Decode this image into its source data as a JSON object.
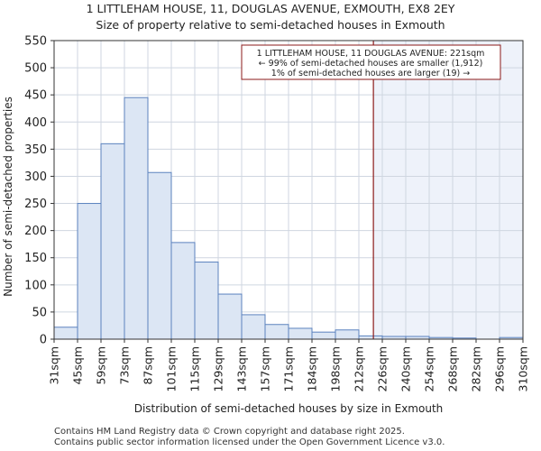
{
  "chart_data": {
    "type": "bar",
    "title": "1 LITTLEHAM HOUSE, 11, DOUGLAS AVENUE, EXMOUTH, EX8 2EY",
    "subtitle": "Size of property relative to semi-detached houses in Exmouth",
    "xlabel": "Distribution of semi-detached houses by size in Exmouth",
    "ylabel": "Number of semi-detached properties",
    "ylim": [
      0,
      550
    ],
    "yticks": [
      0,
      50,
      100,
      150,
      200,
      250,
      300,
      350,
      400,
      450,
      500,
      550
    ],
    "bin_start": 31,
    "bin_width": 13.95,
    "tick_labels": [
      "31sqm",
      "45sqm",
      "59sqm",
      "73sqm",
      "87sqm",
      "101sqm",
      "115sqm",
      "129sqm",
      "143sqm",
      "157sqm",
      "171sqm",
      "184sqm",
      "198sqm",
      "212sqm",
      "226sqm",
      "240sqm",
      "254sqm",
      "268sqm",
      "282sqm",
      "296sqm",
      "310sqm"
    ],
    "values": [
      22,
      250,
      360,
      445,
      307,
      178,
      142,
      83,
      45,
      27,
      20,
      13,
      17,
      6,
      5,
      5,
      3,
      2,
      0,
      3
    ],
    "grid": true,
    "marker": {
      "value_sqm": 221,
      "lines": [
        "1 LITTLEHAM HOUSE, 11 DOUGLAS AVENUE: 221sqm",
        "← 99% of semi-detached houses are smaller (1,912)",
        "1% of semi-detached houses are larger (19) →"
      ]
    },
    "colors": {
      "bar_fill": "#dce6f4",
      "bar_stroke": "#5b82be",
      "marker_line": "#8b1a1a",
      "shade": "#eef2fa",
      "grid": "#cfd6e0"
    }
  },
  "footer": {
    "line1": "Contains HM Land Registry data © Crown copyright and database right 2025.",
    "line2": "Contains public sector information licensed under the Open Government Licence v3.0."
  }
}
